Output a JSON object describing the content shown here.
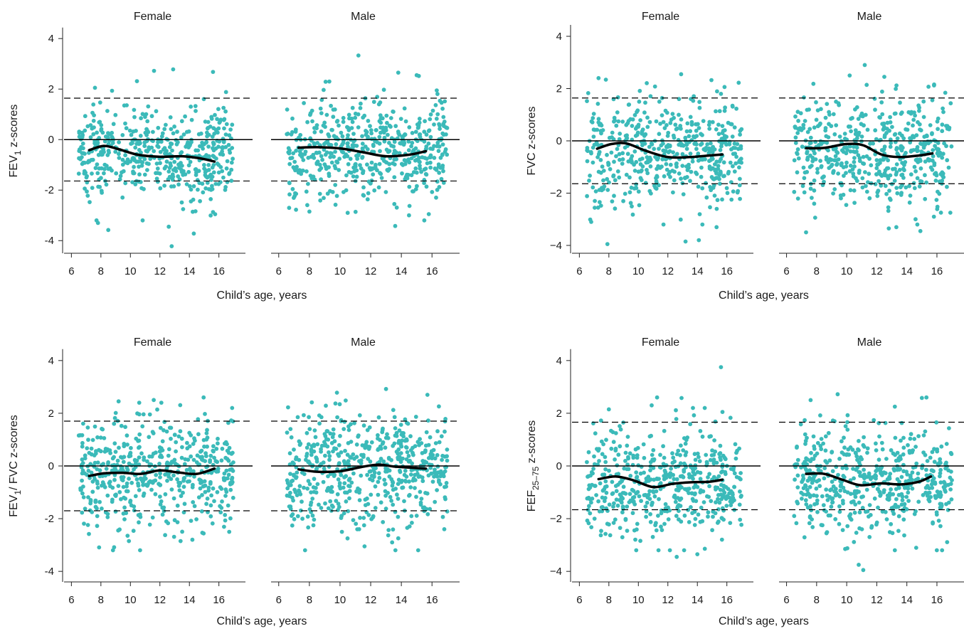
{
  "colors": {
    "points": "#3bbab9",
    "smooth": "#000000",
    "reference": "#000000"
  },
  "chart_data": [
    {
      "type": "scatter",
      "id": "fev1",
      "ylabel": {
        "main": "FEV",
        "sub": "1",
        "rest": " z-scores"
      },
      "xlabel": "Child’s age, years",
      "xlim": [
        5.5,
        17.8
      ],
      "ylim": [
        -4.5,
        4.4
      ],
      "xticks": [
        6,
        8,
        10,
        12,
        14,
        16
      ],
      "yticks": [
        -4,
        -2,
        0,
        2,
        4
      ],
      "ytick_labels": [
        "-4",
        "-2",
        "0",
        "2",
        "4"
      ],
      "reference_lines": {
        "solid": 0,
        "dashed": [
          1.64,
          -1.64
        ]
      },
      "panels": [
        {
          "facet": "Female",
          "n_points": 500,
          "mean": -0.55,
          "sd": 0.95,
          "smooth": [
            [
              7.2,
              -0.42
            ],
            [
              8.2,
              -0.25
            ],
            [
              9.2,
              -0.38
            ],
            [
              10.5,
              -0.6
            ],
            [
              12,
              -0.68
            ],
            [
              13.5,
              -0.66
            ],
            [
              14.8,
              -0.75
            ],
            [
              15.7,
              -0.87
            ]
          ],
          "extremes": [
            [
              11.6,
              2.72
            ],
            [
              12.9,
              2.78
            ],
            [
              15.6,
              2.68
            ],
            [
              12.8,
              -4.22
            ],
            [
              14.3,
              -3.72
            ],
            [
              12.6,
              -3.45
            ],
            [
              8.5,
              -3.58
            ],
            [
              7.8,
              -3.3
            ],
            [
              7.6,
              2.05
            ]
          ]
        },
        {
          "facet": "Male",
          "n_points": 520,
          "mean": -0.5,
          "sd": 0.95,
          "smooth": [
            [
              7.3,
              -0.32
            ],
            [
              8.5,
              -0.3
            ],
            [
              10,
              -0.35
            ],
            [
              11.5,
              -0.5
            ],
            [
              13,
              -0.66
            ],
            [
              14.5,
              -0.6
            ],
            [
              15.6,
              -0.46
            ]
          ],
          "extremes": [
            [
              11.2,
              3.33
            ],
            [
              13.8,
              2.65
            ],
            [
              15,
              2.55
            ],
            [
              9.3,
              2.3
            ],
            [
              13.6,
              -3.42
            ],
            [
              14.5,
              -3.0
            ],
            [
              10.5,
              -2.9
            ],
            [
              15.5,
              -3.2
            ],
            [
              8.0,
              -2.85
            ]
          ]
        }
      ]
    },
    {
      "type": "scatter",
      "id": "fvc",
      "ylabel": {
        "main": "FVC z-scores",
        "sub": "",
        "rest": ""
      },
      "xlabel": "Child’s age, years",
      "xlim": [
        5.5,
        17.8
      ],
      "ylim": [
        -4.3,
        4.3
      ],
      "xticks": [
        6,
        8,
        10,
        12,
        14,
        16
      ],
      "yticks": [
        -4,
        -2,
        0,
        2,
        4
      ],
      "ytick_labels": [
        "−4",
        "−2",
        "0",
        "2",
        "4"
      ],
      "reference_lines": {
        "solid": 0,
        "dashed": [
          1.64,
          -1.64
        ]
      },
      "panels": [
        {
          "facet": "Female",
          "n_points": 500,
          "mean": -0.45,
          "sd": 1.0,
          "smooth": [
            [
              7.2,
              -0.3
            ],
            [
              8.2,
              -0.12
            ],
            [
              9.2,
              -0.1
            ],
            [
              10.5,
              -0.38
            ],
            [
              12,
              -0.62
            ],
            [
              13.5,
              -0.62
            ],
            [
              14.8,
              -0.56
            ],
            [
              15.7,
              -0.52
            ]
          ],
          "extremes": [
            [
              12.9,
              2.55
            ],
            [
              7.3,
              2.4
            ],
            [
              6.8,
              -3.1
            ],
            [
              7.9,
              -3.95
            ],
            [
              13.2,
              -3.85
            ],
            [
              14.1,
              -3.8
            ],
            [
              15.3,
              -3.3
            ],
            [
              15.6,
              1.8
            ]
          ]
        },
        {
          "facet": "Male",
          "n_points": 520,
          "mean": -0.35,
          "sd": 1.0,
          "smooth": [
            [
              7.3,
              -0.28
            ],
            [
              8.5,
              -0.27
            ],
            [
              10,
              -0.12
            ],
            [
              11.1,
              -0.17
            ],
            [
              12.3,
              -0.52
            ],
            [
              13.5,
              -0.62
            ],
            [
              14.8,
              -0.56
            ],
            [
              15.7,
              -0.48
            ]
          ],
          "extremes": [
            [
              11.2,
              2.9
            ],
            [
              10.2,
              2.5
            ],
            [
              12.5,
              2.45
            ],
            [
              7.3,
              -3.5
            ],
            [
              12.8,
              -3.35
            ],
            [
              13.3,
              -3.3
            ],
            [
              14.9,
              -3.45
            ],
            [
              15.8,
              -2.9
            ]
          ]
        }
      ]
    },
    {
      "type": "scatter",
      "id": "ratio",
      "ylabel": {
        "main": "FEV",
        "sub": "1",
        "rest": "/ FVC z-scores"
      },
      "xlabel": "Child’s age, years",
      "xlim": [
        5.5,
        17.8
      ],
      "ylim": [
        -4.4,
        4.4
      ],
      "xticks": [
        6,
        8,
        10,
        12,
        14,
        16
      ],
      "yticks": [
        -4,
        -2,
        0,
        2,
        4
      ],
      "ytick_labels": [
        "-4",
        "-2",
        "0",
        "2",
        "4"
      ],
      "reference_lines": {
        "solid": 0,
        "dashed": [
          1.7,
          -1.7
        ]
      },
      "panels": [
        {
          "facet": "Female",
          "n_points": 520,
          "mean": -0.2,
          "sd": 1.05,
          "smooth": [
            [
              7.2,
              -0.38
            ],
            [
              8.2,
              -0.28
            ],
            [
              9.5,
              -0.26
            ],
            [
              10.7,
              -0.3
            ],
            [
              12,
              -0.17
            ],
            [
              13.3,
              -0.25
            ],
            [
              14.5,
              -0.3
            ],
            [
              15.7,
              -0.1
            ]
          ],
          "extremes": [
            [
              9.2,
              2.45
            ],
            [
              10.6,
              2.4
            ],
            [
              12.1,
              2.4
            ],
            [
              16.9,
              2.2
            ],
            [
              9.9,
              -2.85
            ],
            [
              13.4,
              -2.85
            ],
            [
              14.2,
              -2.8
            ],
            [
              16.7,
              -2.5
            ]
          ]
        },
        {
          "facet": "Male",
          "n_points": 560,
          "mean": -0.15,
          "sd": 1.05,
          "smooth": [
            [
              7.3,
              -0.13
            ],
            [
              8.5,
              -0.22
            ],
            [
              10,
              -0.2
            ],
            [
              11.3,
              -0.05
            ],
            [
              12.5,
              0.05
            ],
            [
              13.5,
              -0.02
            ],
            [
              14.5,
              -0.06
            ],
            [
              15.6,
              -0.1
            ]
          ],
          "extremes": [
            [
              13,
              2.92
            ],
            [
              9.8,
              2.78
            ],
            [
              15.7,
              2.7
            ],
            [
              11.6,
              -3.05
            ],
            [
              15.1,
              -3.2
            ],
            [
              13.4,
              -2.9
            ],
            [
              16.8,
              -2.4
            ]
          ]
        }
      ]
    },
    {
      "type": "scatter",
      "id": "fef",
      "ylabel": {
        "main": "FEF",
        "sub": "25–75",
        "rest": " z-scores"
      },
      "xlabel": "Child’s age, years",
      "xlim": [
        5.5,
        17.8
      ],
      "ylim": [
        -4.4,
        4.4
      ],
      "xticks": [
        6,
        8,
        10,
        12,
        14,
        16
      ],
      "yticks": [
        -4,
        -2,
        0,
        2,
        4
      ],
      "ytick_labels": [
        "−4",
        "−2",
        "0",
        "2",
        "4"
      ],
      "reference_lines": {
        "solid": 0,
        "dashed": [
          1.66,
          -1.66
        ]
      },
      "panels": [
        {
          "facet": "Female",
          "n_points": 500,
          "mean": -0.65,
          "sd": 1.0,
          "smooth": [
            [
              7.3,
              -0.5
            ],
            [
              8.5,
              -0.4
            ],
            [
              9.7,
              -0.55
            ],
            [
              11,
              -0.8
            ],
            [
              12.3,
              -0.68
            ],
            [
              13.5,
              -0.62
            ],
            [
              14.8,
              -0.6
            ],
            [
              15.7,
              -0.52
            ]
          ],
          "extremes": [
            [
              15.6,
              3.75
            ],
            [
              10.9,
              2.3
            ],
            [
              8.0,
              2.15
            ],
            [
              13.7,
              2.2
            ],
            [
              14.5,
              2.2
            ],
            [
              15.7,
              2.05
            ],
            [
              12.6,
              -3.45
            ],
            [
              14.0,
              -3.35
            ],
            [
              13.1,
              -3.2
            ]
          ]
        },
        {
          "facet": "Male",
          "n_points": 520,
          "mean": -0.55,
          "sd": 1.0,
          "smooth": [
            [
              7.3,
              -0.3
            ],
            [
              8.5,
              -0.3
            ],
            [
              9.7,
              -0.52
            ],
            [
              10.9,
              -0.73
            ],
            [
              12.3,
              -0.66
            ],
            [
              13.6,
              -0.7
            ],
            [
              14.8,
              -0.6
            ],
            [
              15.6,
              -0.4
            ]
          ],
          "extremes": [
            [
              11.1,
              -3.95
            ],
            [
              10.8,
              -3.75
            ],
            [
              13.2,
              -3.2
            ],
            [
              9.9,
              -3.15
            ],
            [
              9.4,
              2.72
            ],
            [
              7.6,
              2.5
            ],
            [
              15,
              2.58
            ],
            [
              15.3,
              2.6
            ],
            [
              13.2,
              2.25
            ]
          ]
        }
      ]
    }
  ]
}
